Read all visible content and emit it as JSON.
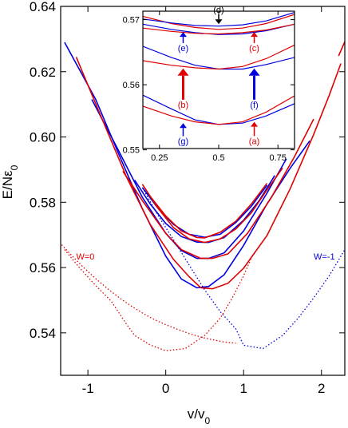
{
  "colors": {
    "red": "#e00000",
    "blue": "#0000dd",
    "black": "#000000"
  },
  "chart_data": {
    "type": "line",
    "xlabel_main": "v/v",
    "xlabel_sub": "0",
    "ylabel_main": "E/N",
    "ylabel_eps": "ε",
    "ylabel_sub": "0",
    "xlim": [
      -1.35,
      2.3
    ],
    "ylim": [
      0.527,
      0.64
    ],
    "xticks": [
      -1,
      0,
      1,
      2
    ],
    "yticks": [
      0.54,
      0.56,
      0.58,
      0.6,
      0.62,
      0.64
    ],
    "xtick_labels": [
      "-1",
      "0",
      "1",
      "2"
    ],
    "ytick_labels": [
      "0.54",
      "0.56",
      "0.58",
      "0.60",
      "0.62",
      "0.64"
    ],
    "annotations": [
      {
        "text": "W=0",
        "x": -1.15,
        "y": 0.5625,
        "color": "red"
      },
      {
        "text": "W=-1",
        "x": 1.9,
        "y": 0.5625,
        "color": "blue"
      }
    ],
    "series": [
      {
        "color": "red",
        "style": "dotted",
        "points": [
          [
            -1.5,
            0.5714
          ],
          [
            -1.35,
            0.5673
          ],
          [
            -1.2,
            0.5635
          ],
          [
            -1.05,
            0.5599
          ],
          [
            -0.9,
            0.5566
          ],
          [
            -0.75,
            0.5536
          ],
          [
            -0.6,
            0.5508
          ],
          [
            -0.45,
            0.5483
          ],
          [
            -0.3,
            0.5461
          ],
          [
            -0.15,
            0.5441
          ],
          [
            0,
            0.5425
          ],
          [
            0.15,
            0.5411
          ],
          [
            0.3,
            0.5398
          ],
          [
            0.45,
            0.5387
          ],
          [
            0.6,
            0.5379
          ],
          [
            0.75,
            0.5372
          ],
          [
            0.9,
            0.5368
          ]
        ]
      },
      {
        "color": "red",
        "style": "dotted",
        "points": [
          [
            -1.3,
            0.5655
          ],
          [
            -1.1,
            0.5597
          ],
          [
            -0.9,
            0.5545
          ],
          [
            -0.7,
            0.5497
          ],
          [
            -0.5,
            0.5425
          ],
          [
            -0.4,
            0.5392
          ],
          [
            -0.2,
            0.5363
          ],
          [
            0,
            0.5345
          ],
          [
            0.25,
            0.5352
          ],
          [
            0.5,
            0.5392
          ],
          [
            0.7,
            0.5445
          ],
          [
            0.85,
            0.5505
          ],
          [
            1.0,
            0.5575
          ],
          [
            1.1,
            0.563
          ]
        ]
      },
      {
        "color": "blue",
        "style": "dotted",
        "points": [
          [
            -0.3,
            0.5845
          ],
          [
            -0.1,
            0.576
          ],
          [
            0.1,
            0.5685
          ],
          [
            0.3,
            0.5608
          ],
          [
            0.5,
            0.5532
          ],
          [
            0.7,
            0.5465
          ],
          [
            0.9,
            0.5412
          ],
          [
            1.0,
            0.5362
          ],
          [
            1.25,
            0.5352
          ],
          [
            1.5,
            0.5392
          ],
          [
            1.7,
            0.5445
          ],
          [
            1.9,
            0.5507
          ],
          [
            2.1,
            0.5575
          ],
          [
            2.3,
            0.5655
          ]
        ]
      },
      {
        "color": "blue",
        "style": "solid",
        "points": [
          [
            -1.3,
            0.629
          ],
          [
            -0.9,
            0.6115
          ],
          [
            -0.6,
            0.5945
          ],
          [
            -0.3,
            0.578
          ],
          [
            0,
            0.5635
          ],
          [
            0.2,
            0.5565
          ],
          [
            0.4,
            0.5538
          ],
          [
            0.55,
            0.5542
          ],
          [
            0.75,
            0.5578
          ],
          [
            1.0,
            0.5668
          ],
          [
            1.3,
            0.5795
          ],
          [
            1.6,
            0.5905
          ],
          [
            1.85,
            0.5988
          ]
        ]
      },
      {
        "color": "blue",
        "style": "solid",
        "points": [
          [
            -0.95,
            0.6115
          ],
          [
            -0.6,
            0.5955
          ],
          [
            -0.3,
            0.5815
          ],
          [
            0,
            0.5705
          ],
          [
            0.2,
            0.5652
          ],
          [
            0.4,
            0.5628
          ],
          [
            0.55,
            0.5628
          ],
          [
            0.75,
            0.5645
          ],
          [
            1.0,
            0.5712
          ],
          [
            1.3,
            0.5828
          ],
          [
            1.55,
            0.5933
          ]
        ]
      },
      {
        "color": "blue",
        "style": "solid",
        "points": [
          [
            -0.4,
            0.5868
          ],
          [
            -0.2,
            0.5795
          ],
          [
            0,
            0.5735
          ],
          [
            0.2,
            0.5695
          ],
          [
            0.4,
            0.5678
          ],
          [
            0.55,
            0.5677
          ],
          [
            0.75,
            0.5692
          ],
          [
            1.0,
            0.5745
          ],
          [
            1.2,
            0.5805
          ],
          [
            1.4,
            0.5882
          ]
        ]
      },
      {
        "color": "blue",
        "style": "solid",
        "points": [
          [
            -0.3,
            0.5845
          ],
          [
            -0.1,
            0.5782
          ],
          [
            0.1,
            0.5732
          ],
          [
            0.3,
            0.5702
          ],
          [
            0.5,
            0.5693
          ],
          [
            0.7,
            0.5702
          ],
          [
            0.9,
            0.5738
          ],
          [
            1.1,
            0.5788
          ],
          [
            1.3,
            0.5852
          ]
        ]
      },
      {
        "color": "red",
        "style": "solid",
        "points": [
          [
            -1.15,
            0.6245
          ],
          [
            -0.8,
            0.6045
          ],
          [
            -0.5,
            0.5875
          ],
          [
            -0.2,
            0.5732
          ],
          [
            0.1,
            0.5625
          ],
          [
            0.3,
            0.5572
          ],
          [
            0.45,
            0.5538
          ],
          [
            0.6,
            0.5535
          ],
          [
            0.8,
            0.5552
          ],
          [
            1.0,
            0.5598
          ],
          [
            1.3,
            0.5698
          ],
          [
            1.6,
            0.5842
          ],
          [
            1.9,
            0.6008
          ],
          [
            2.1,
            0.6128
          ],
          [
            2.25,
            0.6225
          ]
        ]
      },
      {
        "color": "red",
        "style": "solid",
        "points": [
          [
            -0.55,
            0.5895
          ],
          [
            -0.3,
            0.5805
          ],
          [
            0,
            0.5705
          ],
          [
            0.2,
            0.5655
          ],
          [
            0.45,
            0.5628
          ],
          [
            0.6,
            0.5628
          ],
          [
            0.8,
            0.5642
          ],
          [
            1.05,
            0.5705
          ],
          [
            1.35,
            0.5812
          ],
          [
            1.65,
            0.5938
          ],
          [
            1.9,
            0.6055
          ]
        ]
      },
      {
        "color": "red",
        "style": "solid",
        "points": [
          [
            -0.3,
            0.5855
          ],
          [
            -0.1,
            0.5782
          ],
          [
            0.1,
            0.5722
          ],
          [
            0.3,
            0.5688
          ],
          [
            0.5,
            0.5677
          ],
          [
            0.7,
            0.5688
          ],
          [
            0.9,
            0.5718
          ],
          [
            1.1,
            0.5768
          ],
          [
            1.3,
            0.5838
          ],
          [
            1.5,
            0.5905
          ]
        ]
      },
      {
        "color": "red",
        "style": "solid",
        "points": [
          [
            -0.2,
            0.5818
          ],
          [
            0,
            0.5758
          ],
          [
            0.2,
            0.5712
          ],
          [
            0.4,
            0.5692
          ],
          [
            0.5,
            0.5691
          ],
          [
            0.7,
            0.5708
          ],
          [
            0.9,
            0.5742
          ],
          [
            1.1,
            0.5795
          ],
          [
            1.3,
            0.5858
          ]
        ]
      },
      {
        "color": "red",
        "style": "solid",
        "points": [
          [
            2.22,
            0.6248
          ],
          [
            2.3,
            0.6292
          ]
        ]
      }
    ],
    "inset": {
      "xlim": [
        0.18,
        0.82
      ],
      "ylim": [
        0.5502,
        0.5713
      ],
      "xticks": [
        0.25,
        0.5,
        0.75
      ],
      "yticks": [
        0.55,
        0.56,
        0.57
      ],
      "xtick_labels": [
        "0.25",
        "0.5",
        "0.75"
      ],
      "ytick_labels": [
        "0.55",
        "0.56",
        "0.57"
      ],
      "series": [
        {
          "color": "blue",
          "points": [
            [
              0.18,
              0.5584
            ],
            [
              0.3,
              0.5563
            ],
            [
              0.4,
              0.5546
            ],
            [
              0.5,
              0.5539
            ],
            [
              0.6,
              0.5541
            ],
            [
              0.7,
              0.5552
            ],
            [
              0.82,
              0.5571
            ]
          ]
        },
        {
          "color": "red",
          "points": [
            [
              0.18,
              0.5567
            ],
            [
              0.3,
              0.5552
            ],
            [
              0.4,
              0.5543
            ],
            [
              0.5,
              0.5539
            ],
            [
              0.6,
              0.5543
            ],
            [
              0.7,
              0.5558
            ],
            [
              0.82,
              0.5583
            ]
          ]
        },
        {
          "color": "blue",
          "points": [
            [
              0.18,
              0.5659
            ],
            [
              0.3,
              0.5642
            ],
            [
              0.4,
              0.563
            ],
            [
              0.5,
              0.5624
            ],
            [
              0.6,
              0.5624
            ],
            [
              0.7,
              0.5631
            ],
            [
              0.82,
              0.5642
            ]
          ]
        },
        {
          "color": "red",
          "points": [
            [
              0.18,
              0.5637
            ],
            [
              0.3,
              0.563
            ],
            [
              0.4,
              0.5626
            ],
            [
              0.5,
              0.5624
            ],
            [
              0.6,
              0.5628
            ],
            [
              0.7,
              0.564
            ],
            [
              0.82,
              0.5661
            ]
          ]
        },
        {
          "color": "blue",
          "points": [
            [
              0.18,
              0.5693
            ],
            [
              0.3,
              0.5685
            ],
            [
              0.4,
              0.568
            ],
            [
              0.5,
              0.5677
            ],
            [
              0.6,
              0.5678
            ],
            [
              0.7,
              0.5683
            ],
            [
              0.82,
              0.5693
            ]
          ]
        },
        {
          "color": "red",
          "points": [
            [
              0.18,
              0.5705
            ],
            [
              0.3,
              0.5694
            ],
            [
              0.4,
              0.5688
            ],
            [
              0.5,
              0.5685
            ],
            [
              0.6,
              0.5687
            ],
            [
              0.7,
              0.5694
            ],
            [
              0.82,
              0.5708
            ]
          ]
        },
        {
          "color": "red",
          "points": [
            [
              0.18,
              0.5687
            ],
            [
              0.3,
              0.5682
            ],
            [
              0.4,
              0.5679
            ],
            [
              0.5,
              0.5678
            ],
            [
              0.6,
              0.568
            ],
            [
              0.7,
              0.5684
            ],
            [
              0.82,
              0.5693
            ]
          ]
        },
        {
          "color": "blue",
          "points": [
            [
              0.18,
              0.5701
            ],
            [
              0.3,
              0.5695
            ],
            [
              0.4,
              0.5691
            ],
            [
              0.5,
              0.569
            ],
            [
              0.6,
              0.5692
            ],
            [
              0.7,
              0.5698
            ],
            [
              0.82,
              0.5711
            ]
          ]
        }
      ],
      "arrows": [
        {
          "label": "(a)",
          "color": "red",
          "x": 0.65,
          "y_tail": 0.5521,
          "y_head": 0.5543,
          "heavy": false
        },
        {
          "label": "(b)",
          "color": "red",
          "x": 0.35,
          "y_tail": 0.5577,
          "y_head": 0.5625,
          "heavy": true
        },
        {
          "label": "(c)",
          "color": "red",
          "x": 0.65,
          "y_tail": 0.5664,
          "y_head": 0.5681,
          "heavy": false
        },
        {
          "label": "(d)",
          "color": "black",
          "x": 0.5,
          "y_tail": 0.5708,
          "y_head": 0.5693,
          "heavy": false
        },
        {
          "label": "(e)",
          "color": "blue",
          "x": 0.35,
          "y_tail": 0.5664,
          "y_head": 0.5681,
          "heavy": false
        },
        {
          "label": "(f)",
          "color": "blue",
          "x": 0.65,
          "y_tail": 0.5577,
          "y_head": 0.5625,
          "heavy": true
        },
        {
          "label": "(g)",
          "color": "blue",
          "x": 0.35,
          "y_tail": 0.5521,
          "y_head": 0.5541,
          "heavy": false
        }
      ]
    }
  }
}
